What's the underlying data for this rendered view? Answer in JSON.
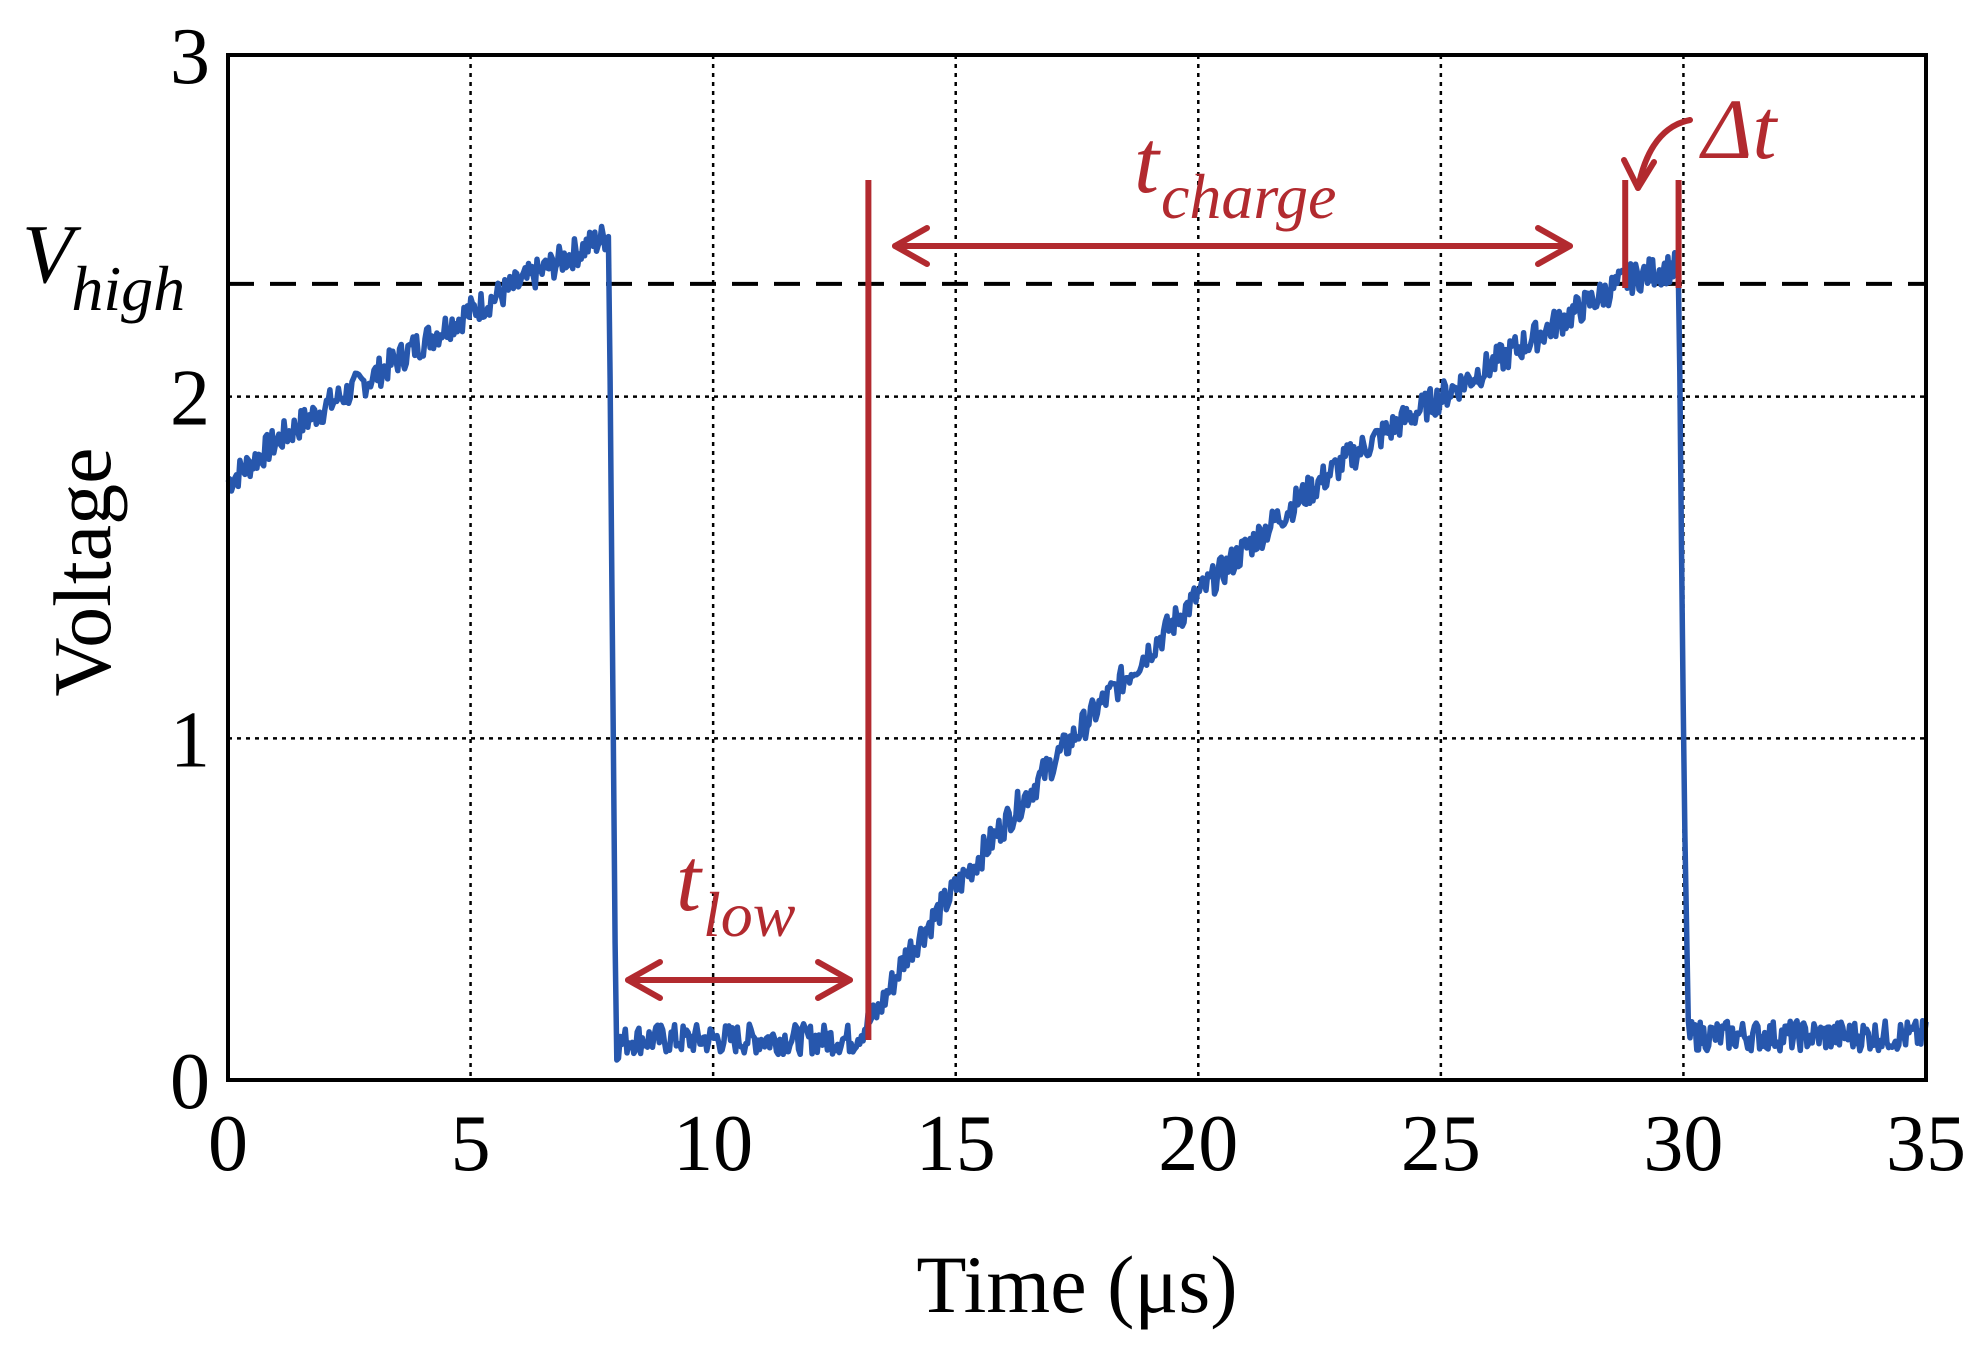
{
  "colors": {
    "signal": "#2757ad",
    "annotation": "#b22a2f",
    "axis": "#000000",
    "grid": "#000000"
  },
  "chart_data": {
    "type": "line",
    "title": "",
    "xlabel": "Time (μs)",
    "ylabel": "Voltage",
    "xlim": [
      0,
      35
    ],
    "ylim": [
      0,
      3
    ],
    "xticks": [
      0,
      5,
      10,
      15,
      20,
      25,
      30,
      35
    ],
    "yticks": [
      0,
      1,
      2,
      3
    ],
    "grid": true,
    "series": [
      {
        "name": "Voltage",
        "color": "#2757ad",
        "x": [
          0,
          1,
          2,
          3,
          4,
          5,
          6,
          7,
          7.8,
          7.85,
          8.0,
          8.3,
          9,
          10,
          11,
          12,
          12.9,
          13.4,
          14,
          15,
          16,
          17,
          18,
          19,
          20,
          21,
          22,
          23,
          24,
          25,
          26,
          27,
          28,
          28.8,
          29.5,
          29.9,
          30.0,
          30.1,
          31,
          32,
          33,
          34,
          35
        ],
        "y": [
          1.75,
          1.87,
          1.97,
          2.06,
          2.16,
          2.25,
          2.33,
          2.41,
          2.47,
          2.47,
          0.1,
          0.12,
          0.12,
          0.12,
          0.12,
          0.12,
          0.12,
          0.2,
          0.37,
          0.56,
          0.75,
          0.93,
          1.1,
          1.26,
          1.42,
          1.56,
          1.69,
          1.81,
          1.91,
          2.0,
          2.09,
          2.18,
          2.27,
          2.34,
          2.37,
          2.38,
          1.0,
          0.13,
          0.13,
          0.13,
          0.13,
          0.13,
          0.13
        ]
      }
    ],
    "reference_lines": [
      {
        "type": "horizontal",
        "y": 2.33,
        "label_main": "V",
        "label_sub": "high",
        "style": "dashed"
      }
    ],
    "annotations": [
      {
        "label_main": "t",
        "label_sub": "low",
        "x_start": 8.2,
        "x_end": 13.0,
        "y": 0.3
      },
      {
        "label_main": "t",
        "label_sub": "charge",
        "x_start": 13.5,
        "x_end": 28.6,
        "y": 2.43
      },
      {
        "label_main": "Δt",
        "label_sub": "",
        "x_start": 28.8,
        "x_end": 29.9
      }
    ],
    "markers": [
      13.2,
      28.8,
      29.9
    ]
  }
}
